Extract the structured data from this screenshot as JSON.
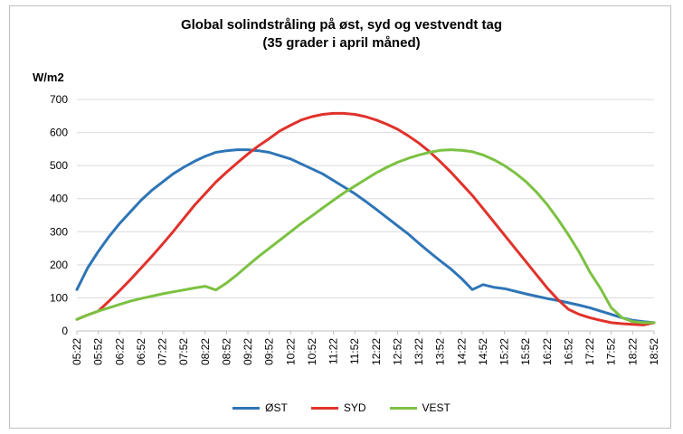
{
  "chart_data": {
    "type": "line",
    "title_line1": "Global solindstråling på øst, syd og vestvendt tag",
    "title_line2": "(35 grader i april måned)",
    "ylabel": "W/m2",
    "xlabel": "",
    "ylim": [
      0,
      700
    ],
    "yticks": [
      0,
      100,
      200,
      300,
      400,
      500,
      600,
      700
    ],
    "grid": true,
    "legend_position": "bottom",
    "x": [
      "05:22",
      "05:37",
      "05:52",
      "06:07",
      "06:22",
      "06:37",
      "06:52",
      "07:07",
      "07:22",
      "07:37",
      "07:52",
      "08:07",
      "08:22",
      "08:37",
      "08:52",
      "09:07",
      "09:22",
      "09:37",
      "09:52",
      "10:07",
      "10:22",
      "10:37",
      "10:52",
      "11:07",
      "11:22",
      "11:37",
      "11:52",
      "12:07",
      "12:22",
      "12:37",
      "12:52",
      "13:07",
      "13:22",
      "13:37",
      "13:52",
      "14:07",
      "14:22",
      "14:37",
      "14:52",
      "15:07",
      "15:22",
      "15:37",
      "15:52",
      "16:07",
      "16:22",
      "16:37",
      "16:52",
      "17:07",
      "17:22",
      "17:37",
      "17:52",
      "18:07",
      "18:22",
      "18:37",
      "18:52"
    ],
    "xtick_labels": [
      "05:22",
      "05:52",
      "06:22",
      "06:52",
      "07:22",
      "07:52",
      "08:22",
      "08:52",
      "09:22",
      "09:52",
      "10:22",
      "10:52",
      "11:22",
      "11:52",
      "12:22",
      "12:52",
      "13:22",
      "13:52",
      "14:22",
      "14:52",
      "15:22",
      "15:52",
      "16:22",
      "16:52",
      "17:22",
      "17:52",
      "18:22",
      "18:52"
    ],
    "series": [
      {
        "name": "ØST",
        "color": "#2e75b6",
        "values": [
          125,
          190,
          240,
          285,
          325,
          360,
          395,
          425,
          450,
          475,
          495,
          513,
          528,
          540,
          545,
          548,
          548,
          545,
          540,
          530,
          520,
          505,
          490,
          475,
          455,
          435,
          415,
          392,
          368,
          343,
          318,
          293,
          265,
          238,
          212,
          187,
          158,
          125,
          140,
          132,
          128,
          120,
          112,
          105,
          98,
          92,
          85,
          78,
          70,
          60,
          50,
          40,
          32,
          28,
          25
        ]
      },
      {
        "name": "SYD",
        "color": "#e0322b",
        "values": [
          35,
          48,
          60,
          90,
          122,
          155,
          190,
          225,
          262,
          300,
          340,
          380,
          415,
          450,
          480,
          508,
          535,
          560,
          582,
          605,
          622,
          638,
          648,
          655,
          658,
          658,
          655,
          648,
          638,
          625,
          610,
          590,
          568,
          542,
          512,
          480,
          445,
          410,
          370,
          330,
          290,
          250,
          210,
          170,
          130,
          95,
          65,
          50,
          40,
          32,
          25,
          22,
          20,
          18,
          25
        ]
      },
      {
        "name": "VEST",
        "color": "#7cc142",
        "values": [
          35,
          48,
          60,
          70,
          80,
          90,
          98,
          105,
          112,
          118,
          124,
          130,
          135,
          124,
          145,
          170,
          198,
          225,
          250,
          275,
          300,
          325,
          348,
          372,
          395,
          418,
          438,
          458,
          478,
          495,
          510,
          522,
          532,
          540,
          546,
          548,
          546,
          542,
          532,
          518,
          500,
          478,
          452,
          420,
          382,
          338,
          290,
          238,
          178,
          128,
          70,
          40,
          28,
          25,
          25
        ]
      }
    ]
  }
}
